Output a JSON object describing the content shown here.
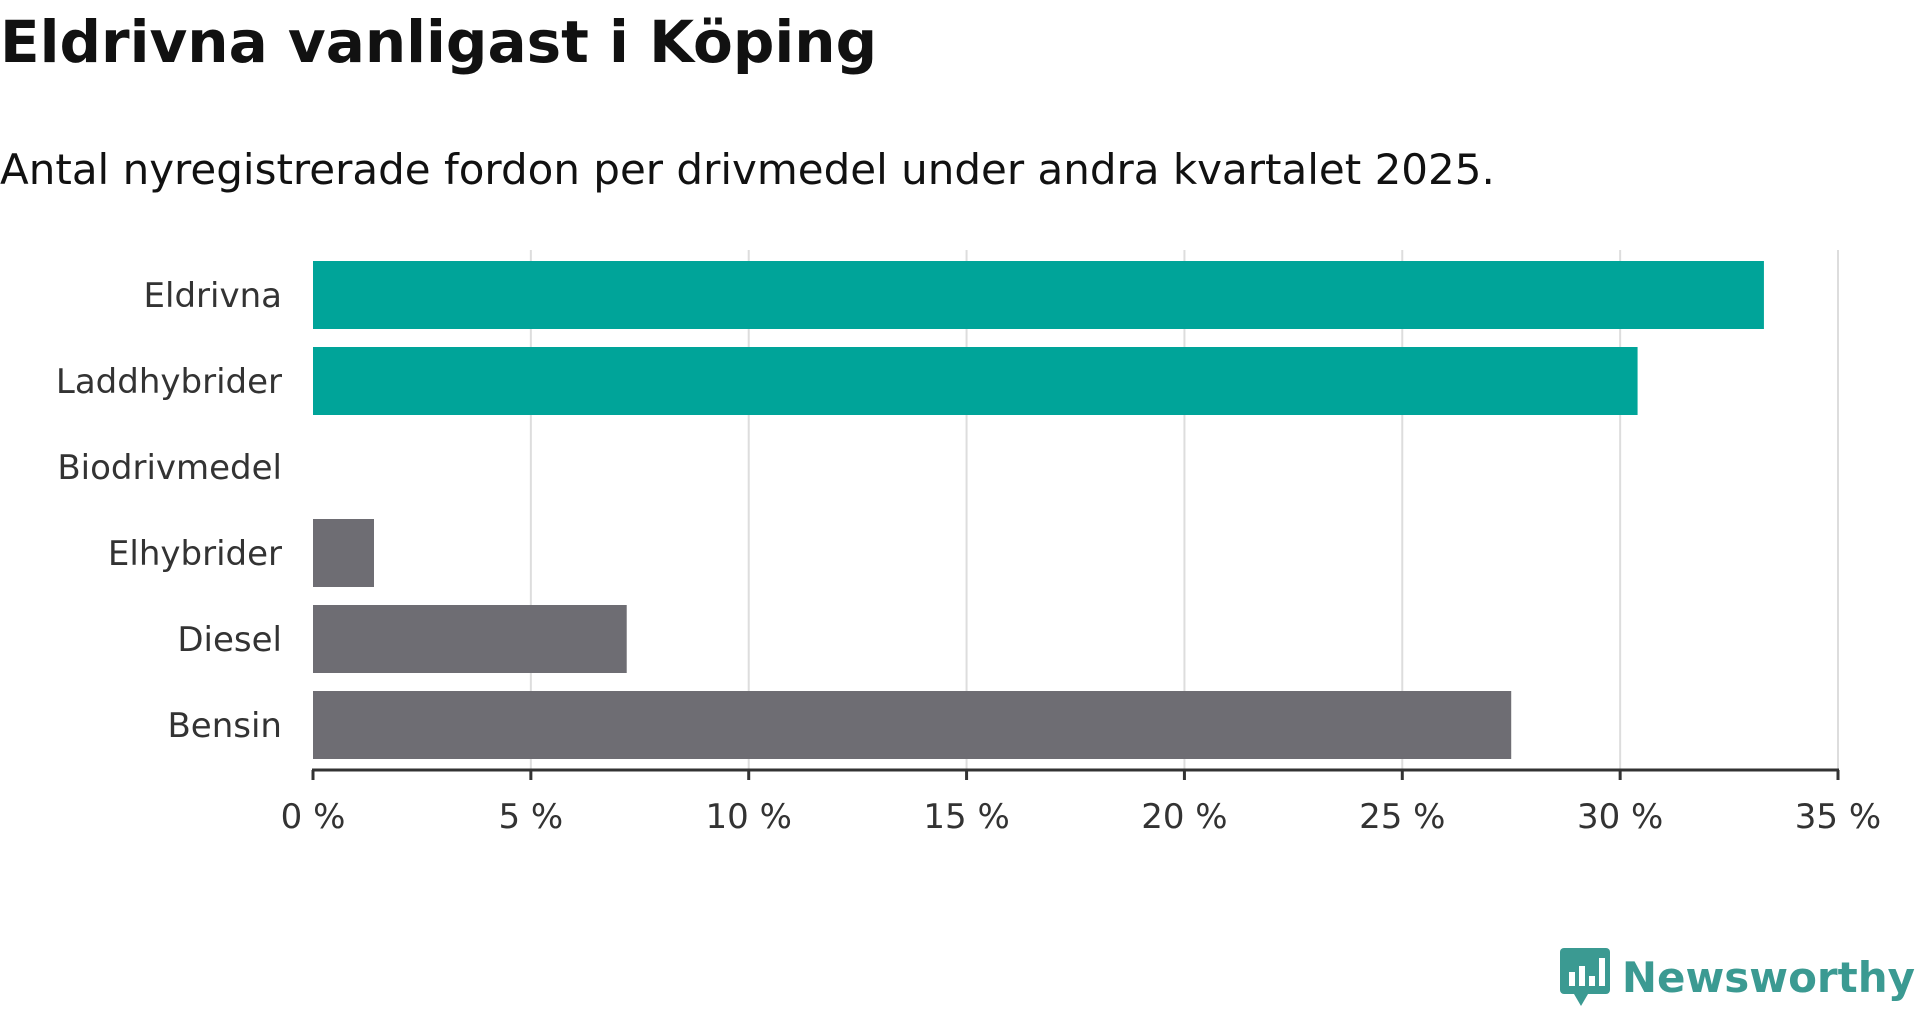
{
  "title": "Eldrivna vanligast i Köping",
  "subtitle": "Antal nyregistrerade fordon per drivmedel under andra kvartalet 2025.",
  "colors": {
    "highlight": "#00a499",
    "other": "#6e6d73",
    "grid": "#dddddd",
    "axis": "#333333",
    "brand": "#3b9a92"
  },
  "chart_data": {
    "type": "bar",
    "orientation": "horizontal",
    "categories": [
      "Eldrivna",
      "Laddhybrider",
      "Biodrivmedel",
      "Elhybrider",
      "Diesel",
      "Bensin"
    ],
    "values": [
      33.3,
      30.4,
      0,
      1.4,
      7.2,
      27.5
    ],
    "highlighted": [
      true,
      true,
      false,
      false,
      false,
      false
    ],
    "xlim": [
      0,
      35
    ],
    "ticks": [
      0,
      5,
      10,
      15,
      20,
      25,
      30,
      35
    ],
    "tick_labels": [
      "0 %",
      "5 %",
      "10 %",
      "15 %",
      "20 %",
      "25 %",
      "30 %",
      "35 %"
    ],
    "grid": true
  },
  "logo": {
    "text": "Newsworthy",
    "icon": "bar-chart-speech-bubble-icon"
  }
}
